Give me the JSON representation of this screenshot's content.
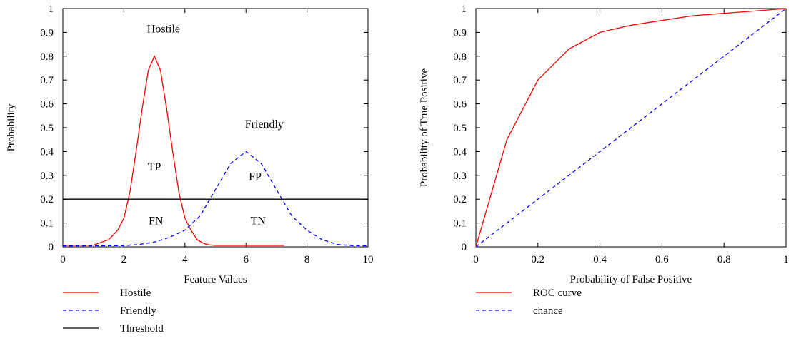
{
  "chart_data": [
    {
      "type": "line",
      "title": "",
      "xlabel": "Feature Values",
      "ylabel": "Probability",
      "xlim": [
        0,
        10
      ],
      "ylim": [
        0,
        1
      ],
      "xticks": [
        "0",
        "2",
        "4",
        "6",
        "8",
        "10"
      ],
      "yticks": [
        "0",
        "0.1",
        "0.2",
        "0.3",
        "0.4",
        "0.5",
        "0.6",
        "0.7",
        "0.8",
        "0.9",
        "1"
      ],
      "grid": false,
      "legend_position": "bottom-left",
      "series": [
        {
          "name": "Hostile",
          "color": "#ff0000",
          "style": "solid",
          "x": [
            0,
            1,
            1.5,
            1.8,
            2,
            2.2,
            2.4,
            2.6,
            2.8,
            3,
            3.2,
            3.4,
            3.6,
            3.8,
            4,
            4.2,
            4.4,
            4.6,
            4.8,
            5,
            5.5,
            7.25
          ],
          "y": [
            0.006,
            0.007,
            0.03,
            0.07,
            0.12,
            0.23,
            0.4,
            0.58,
            0.74,
            0.8,
            0.74,
            0.58,
            0.4,
            0.23,
            0.12,
            0.07,
            0.03,
            0.015,
            0.008,
            0.006,
            0.006,
            0.006
          ]
        },
        {
          "name": "Friendly",
          "color": "#0000ff",
          "style": "dashed",
          "x": [
            0,
            2,
            2.5,
            3,
            3.5,
            4,
            4.5,
            5,
            5.5,
            6,
            6.5,
            7,
            7.5,
            8,
            8.5,
            9,
            9.5,
            10
          ],
          "y": [
            0.004,
            0.005,
            0.01,
            0.02,
            0.04,
            0.07,
            0.13,
            0.24,
            0.35,
            0.4,
            0.35,
            0.24,
            0.13,
            0.07,
            0.03,
            0.01,
            0.005,
            0.004
          ]
        },
        {
          "name": "Threshold",
          "color": "#000000",
          "style": "solid",
          "x": [
            0,
            10
          ],
          "y": [
            0.2,
            0.2
          ]
        }
      ],
      "annotations": [
        {
          "text": "Hostile",
          "x": 3.3,
          "y": 0.9
        },
        {
          "text": "Friendly",
          "x": 6.6,
          "y": 0.5
        },
        {
          "text": "TP",
          "x": 3.0,
          "y": 0.32
        },
        {
          "text": "FP",
          "x": 6.3,
          "y": 0.28
        },
        {
          "text": "FN",
          "x": 3.05,
          "y": 0.095
        },
        {
          "text": "TN",
          "x": 6.4,
          "y": 0.095
        }
      ]
    },
    {
      "type": "line",
      "title": "",
      "xlabel": "Probability of False Positive",
      "ylabel": "Probability of True Positive",
      "xlim": [
        0,
        1
      ],
      "ylim": [
        0,
        1
      ],
      "xticks": [
        "0",
        "0.2",
        "0.4",
        "0.6",
        "0.8",
        "1"
      ],
      "yticks": [
        "0",
        "0.1",
        "0.2",
        "0.3",
        "0.4",
        "0.5",
        "0.6",
        "0.7",
        "0.8",
        "0.9",
        "1"
      ],
      "grid": false,
      "legend_position": "bottom-left",
      "series": [
        {
          "name": "ROC curve",
          "color": "#ff0000",
          "style": "solid",
          "x": [
            0,
            0.1,
            0.2,
            0.3,
            0.4,
            0.5,
            0.6,
            0.7,
            0.8,
            0.9,
            1
          ],
          "y": [
            0,
            0.45,
            0.7,
            0.83,
            0.9,
            0.93,
            0.95,
            0.97,
            0.98,
            0.99,
            1
          ]
        },
        {
          "name": "chance",
          "color": "#0000ff",
          "style": "dashed",
          "x": [
            0,
            1
          ],
          "y": [
            0,
            1
          ]
        }
      ],
      "annotations": []
    }
  ]
}
